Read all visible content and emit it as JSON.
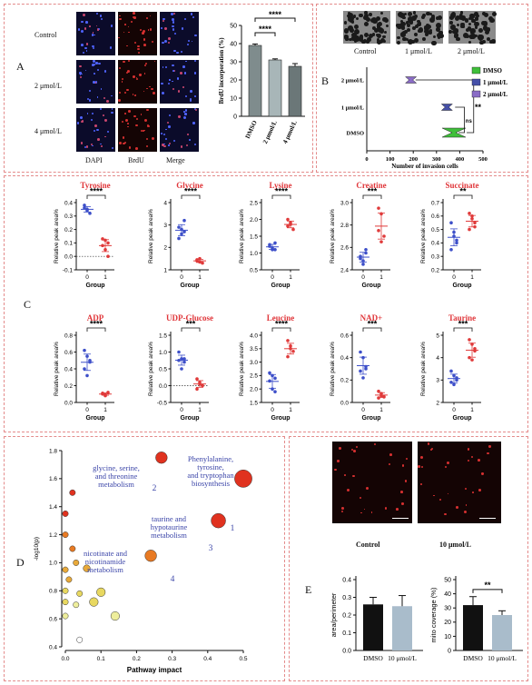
{
  "panel_labels": {
    "A": "A",
    "B": "B",
    "C": "C",
    "D": "D",
    "E": "E"
  },
  "panelA": {
    "rows": [
      "Control",
      "2 μmol/L",
      "4 μmol/L"
    ],
    "cols": [
      "DAPI",
      "BrdU",
      "Merge"
    ],
    "bar": {
      "ylabel": "BrdU incorporation (%)",
      "yticks": [
        "0",
        "10",
        "20",
        "30",
        "40",
        "50"
      ],
      "categories": [
        "DMSO",
        "2 μmol/L",
        "4 μmol/L"
      ],
      "sig": [
        "****",
        "****"
      ]
    }
  },
  "panelB": {
    "images": [
      "Control",
      "1 μmol/L",
      "2 μmol/L"
    ],
    "rows": [
      "2 μmol/L",
      "1 μmol/L",
      "DMSO"
    ],
    "xlabel": "Number of invasion cells",
    "xticks": [
      "0",
      "100",
      "200",
      "300",
      "400",
      "500"
    ],
    "legend": [
      "DMSO",
      "1 μmol/L",
      "2 μmol/L"
    ],
    "sig": [
      "**",
      "ns"
    ],
    "colors": {
      "DMSO": "#3fbf3a",
      "1 μmol/L": "#4650a8",
      "2 μmol/L": "#8a6cc6"
    }
  },
  "panelC": {
    "plots": [
      {
        "title": "Tyrosine",
        "ylabel": "Relative peak area%",
        "yticks": [
          "-0.1",
          "0.0",
          "0.1",
          "0.2",
          "0.3",
          "0.4"
        ],
        "xlabel": "Group",
        "xticks": [
          "0",
          "1"
        ],
        "sig": "****"
      },
      {
        "title": "Glycine",
        "ylabel": "Relative peak area%",
        "yticks": [
          "1",
          "2",
          "3",
          "4"
        ],
        "xlabel": "Group",
        "xticks": [
          "0",
          "1"
        ],
        "sig": "****"
      },
      {
        "title": "Lysine",
        "ylabel": "Relative peak area%",
        "yticks": [
          "0.5",
          "1.0",
          "1.5",
          "2.0",
          "2.5"
        ],
        "xlabel": "Group",
        "xticks": [
          "0",
          "1"
        ],
        "sig": "****"
      },
      {
        "title": "Creatine",
        "ylabel": "Relative peak area%",
        "yticks": [
          "2.4",
          "2.6",
          "2.8",
          "3.0"
        ],
        "xlabel": "Group",
        "xticks": [
          "0",
          "1"
        ],
        "sig": "***"
      },
      {
        "title": "Succinate",
        "ylabel": "Relative peak area%",
        "yticks": [
          "0.2",
          "0.3",
          "0.4",
          "0.5",
          "0.6",
          "0.7"
        ],
        "xlabel": "Group",
        "xticks": [
          "0",
          "1"
        ],
        "sig": "**"
      },
      {
        "title": "ADP",
        "ylabel": "Relative peak area%",
        "yticks": [
          "0.0",
          "0.2",
          "0.4",
          "0.6",
          "0.8"
        ],
        "xlabel": "Group",
        "xticks": [
          "0",
          "1"
        ],
        "sig": "****"
      },
      {
        "title": "UDP-Glucose",
        "ylabel": "Relative peak area%",
        "yticks": [
          "-0.5",
          "0.0",
          "0.5",
          "1.0",
          "1.5"
        ],
        "xlabel": "Group",
        "xticks": [
          "0",
          "1"
        ],
        "sig": "***"
      },
      {
        "title": "Leucine",
        "ylabel": "Relative peak area%",
        "yticks": [
          "1.5",
          "2.0",
          "2.5",
          "3.0",
          "3.5",
          "4.0"
        ],
        "xlabel": "Group",
        "xticks": [
          "0",
          "1"
        ],
        "sig": "****"
      },
      {
        "title": "NAD+",
        "ylabel": "Relative peak area%",
        "yticks": [
          "0.0",
          "0.2",
          "0.4",
          "0.6"
        ],
        "xlabel": "Group",
        "xticks": [
          "0",
          "1"
        ],
        "sig": "***"
      },
      {
        "title": "Taurine",
        "ylabel": "Relative peak area%",
        "yticks": [
          "2",
          "3",
          "4",
          "5"
        ],
        "xlabel": "Group",
        "xticks": [
          "0",
          "1"
        ],
        "sig": "***"
      }
    ]
  },
  "panelD": {
    "ylabel": "-log10(p)",
    "xlabel": "Pathway impact",
    "xticks": [
      "0.0",
      "0.1",
      "0.2",
      "0.3",
      "0.4",
      "0.5"
    ],
    "yticks": [
      "0.4",
      "0.6",
      "0.8",
      "1.0",
      "1.2",
      "1.4",
      "1.6",
      "1.8"
    ],
    "annotations": [
      {
        "text": [
          "glycine, serine,",
          "and threonine",
          "metabolism"
        ],
        "num": "2"
      },
      {
        "text": [
          "Phenylalanine,",
          "tyrosine,",
          "and tryptophan",
          "biosynthesis"
        ],
        "num": "1"
      },
      {
        "text": [
          "taurine and",
          "hypotaurine",
          "metabolism"
        ],
        "num": "3"
      },
      {
        "text": [
          "nicotinate and",
          "nicotinamide",
          "metabolism"
        ],
        "num": "4"
      }
    ]
  },
  "panelE": {
    "images": [
      "Control",
      "10 μmol/L"
    ],
    "chart1": {
      "ylabel": "area/perimeter",
      "yticks": [
        "0.0",
        "0.1",
        "0.2",
        "0.3",
        "0.4"
      ],
      "categories": [
        "DMSO",
        "10 μmol/L"
      ]
    },
    "chart2": {
      "ylabel": "mito coverage (%)",
      "yticks": [
        "0",
        "10",
        "20",
        "30",
        "40",
        "50"
      ],
      "categories": [
        "DMSO",
        "10 μmol/L"
      ],
      "sig": "**"
    }
  },
  "chart_data": [
    {
      "type": "bar",
      "panel": "A",
      "categories": [
        "DMSO",
        "2 μmol/L",
        "4 μmol/L"
      ],
      "values": [
        39,
        31,
        27.5
      ],
      "errors": [
        0.8,
        0.6,
        1.5
      ],
      "ylabel": "BrdU incorporation (%)",
      "ylim": [
        0,
        50
      ]
    },
    {
      "type": "box",
      "panel": "B",
      "categories": [
        "2 μmol/L",
        "1 μmol/L",
        "DMSO"
      ],
      "values": [
        190,
        345,
        375
      ],
      "xlabel": "Number of invasion cells",
      "xlim": [
        0,
        500
      ]
    },
    {
      "type": "scatter",
      "panel": "C",
      "title": "Tyrosine",
      "group0": [
        0.36,
        0.34,
        0.32,
        0.38,
        0.35
      ],
      "group1": [
        0.13,
        0.05,
        0.0,
        0.08,
        0.12,
        0.1
      ],
      "ylim": [
        -0.1,
        0.4
      ]
    },
    {
      "type": "scatter",
      "panel": "C",
      "title": "Glycine",
      "group0": [
        2.9,
        2.6,
        3.2,
        2.4,
        2.8,
        2.7
      ],
      "group1": [
        1.4,
        1.5,
        1.3,
        1.45,
        1.35
      ],
      "ylim": [
        1,
        4
      ]
    },
    {
      "type": "scatter",
      "panel": "C",
      "title": "Lysine",
      "group0": [
        1.2,
        1.1,
        1.3,
        1.25,
        1.15,
        1.1
      ],
      "group1": [
        1.8,
        1.9,
        1.7,
        2.0,
        1.85
      ],
      "ylim": [
        0.5,
        2.5
      ]
    },
    {
      "type": "scatter",
      "panel": "C",
      "title": "Creatine",
      "group0": [
        2.52,
        2.48,
        2.55,
        2.5,
        2.45,
        2.58
      ],
      "group1": [
        2.95,
        2.9,
        2.7,
        2.75,
        2.65
      ],
      "ylim": [
        2.4,
        3.0
      ]
    },
    {
      "type": "scatter",
      "panel": "C",
      "title": "Succinate",
      "group0": [
        0.55,
        0.45,
        0.4,
        0.35,
        0.48,
        0.42
      ],
      "group1": [
        0.62,
        0.58,
        0.55,
        0.5,
        0.6,
        0.52
      ],
      "ylim": [
        0.2,
        0.7
      ]
    },
    {
      "type": "scatter",
      "panel": "C",
      "title": "ADP",
      "group0": [
        0.62,
        0.55,
        0.5,
        0.4,
        0.32,
        0.48
      ],
      "group1": [
        0.1,
        0.08,
        0.12,
        0.11,
        0.09
      ],
      "ylim": [
        0.0,
        0.8
      ]
    },
    {
      "type": "scatter",
      "panel": "C",
      "title": "UDP-Glucose",
      "group0": [
        1.0,
        0.8,
        0.7,
        0.75,
        0.5,
        0.8
      ],
      "group1": [
        0.2,
        0.1,
        0.0,
        -0.1,
        0.05
      ],
      "ylim": [
        -0.5,
        1.5
      ]
    },
    {
      "type": "scatter",
      "panel": "C",
      "title": "Leucine",
      "group0": [
        2.6,
        2.5,
        2.4,
        2.3,
        2.0,
        1.9
      ],
      "group1": [
        3.8,
        3.6,
        3.4,
        3.2,
        3.5
      ],
      "ylim": [
        1.5,
        4.0
      ]
    },
    {
      "type": "scatter",
      "panel": "C",
      "title": "NAD+",
      "group0": [
        0.45,
        0.4,
        0.32,
        0.28,
        0.22,
        0.3
      ],
      "group1": [
        0.1,
        0.08,
        0.05,
        0.04,
        0.06
      ],
      "ylim": [
        0.0,
        0.6
      ]
    },
    {
      "type": "scatter",
      "panel": "C",
      "title": "Taurine",
      "group0": [
        3.4,
        3.2,
        3.0,
        2.9,
        2.8,
        3.1
      ],
      "group1": [
        4.8,
        4.6,
        4.3,
        4.0,
        3.9,
        4.4
      ],
      "ylim": [
        2,
        5
      ]
    },
    {
      "type": "bubble",
      "panel": "D",
      "xlabel": "Pathway impact",
      "ylabel": "-log10(p)",
      "xlim": [
        0,
        0.5
      ],
      "ylim": [
        0.4,
        1.8
      ],
      "points": [
        {
          "x": 0.5,
          "y": 1.6,
          "r": 3,
          "label": "1"
        },
        {
          "x": 0.27,
          "y": 1.75,
          "r": 2,
          "label": "2"
        },
        {
          "x": 0.43,
          "y": 1.3,
          "r": 2.5,
          "label": "3"
        },
        {
          "x": 0.24,
          "y": 1.05,
          "r": 2,
          "label": "4"
        },
        {
          "x": 0.02,
          "y": 1.5,
          "r": 1
        },
        {
          "x": 0.0,
          "y": 1.35,
          "r": 1
        },
        {
          "x": 0.0,
          "y": 1.2,
          "r": 1
        },
        {
          "x": 0.02,
          "y": 1.1,
          "r": 1
        },
        {
          "x": 0.03,
          "y": 1.0,
          "r": 1
        },
        {
          "x": 0.06,
          "y": 0.96,
          "r": 1.2
        },
        {
          "x": 0.0,
          "y": 0.95,
          "r": 1
        },
        {
          "x": 0.01,
          "y": 0.88,
          "r": 1
        },
        {
          "x": 0.0,
          "y": 0.8,
          "r": 1
        },
        {
          "x": 0.04,
          "y": 0.78,
          "r": 1
        },
        {
          "x": 0.1,
          "y": 0.79,
          "r": 1.5
        },
        {
          "x": 0.08,
          "y": 0.72,
          "r": 1.5
        },
        {
          "x": 0.0,
          "y": 0.72,
          "r": 1
        },
        {
          "x": 0.03,
          "y": 0.7,
          "r": 1
        },
        {
          "x": 0.14,
          "y": 0.62,
          "r": 1.5
        },
        {
          "x": 0.0,
          "y": 0.62,
          "r": 1
        },
        {
          "x": 0.04,
          "y": 0.45,
          "r": 1
        }
      ]
    },
    {
      "type": "bar",
      "panel": "E",
      "ylabel": "area/perimeter",
      "categories": [
        "DMSO",
        "10 μmol/L"
      ],
      "values": [
        0.26,
        0.25
      ],
      "errors": [
        0.04,
        0.06
      ],
      "ylim": [
        0,
        0.4
      ]
    },
    {
      "type": "bar",
      "panel": "E",
      "ylabel": "mito coverage (%)",
      "categories": [
        "DMSO",
        "10 μmol/L"
      ],
      "values": [
        32,
        25
      ],
      "errors": [
        6,
        3
      ],
      "ylim": [
        0,
        50
      ]
    }
  ]
}
